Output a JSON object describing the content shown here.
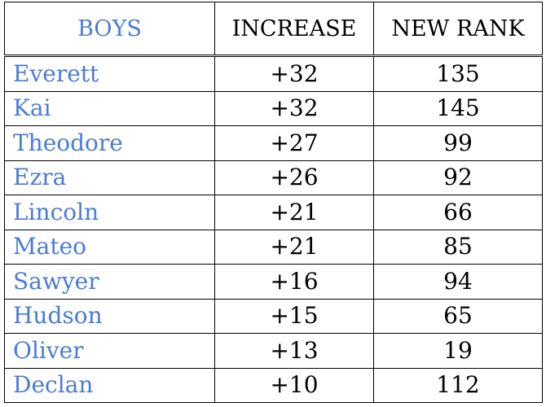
{
  "table": {
    "header": [
      "BOYS",
      "INCREASE",
      "NEW RANK"
    ],
    "rows": [
      [
        "Everett",
        "+32",
        135
      ],
      [
        "Kai",
        "+32",
        145
      ],
      [
        "Theodore",
        "+27",
        99
      ],
      [
        "Ezra",
        "+26",
        92
      ],
      [
        "Lincoln",
        "+21",
        66
      ],
      [
        "Mateo",
        "+21",
        85
      ],
      [
        "Sawyer",
        "+16",
        94
      ],
      [
        "Hudson",
        "+15",
        65
      ],
      [
        "Oliver",
        "+13",
        19
      ],
      [
        "Declan",
        "+10",
        112
      ]
    ]
  }
}
